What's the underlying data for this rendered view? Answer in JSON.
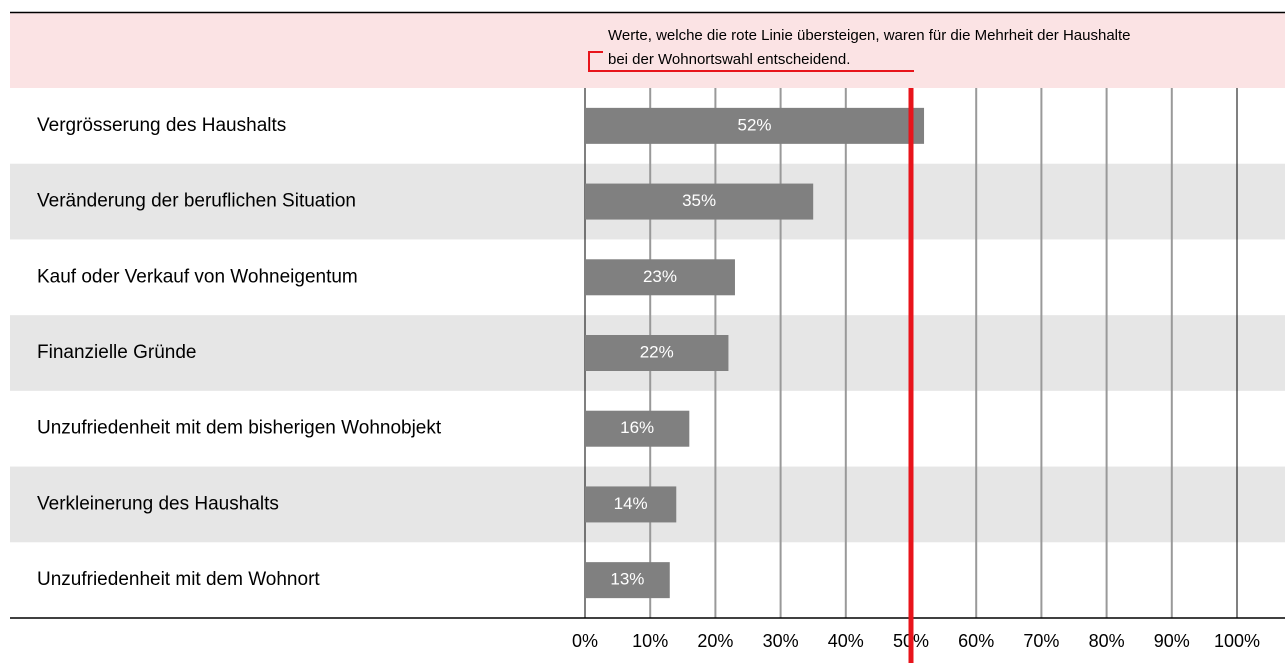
{
  "chart_data": {
    "type": "bar",
    "orientation": "horizontal",
    "annotation": [
      "Werte, welche die rote Linie übersteigen, waren für die Mehrheit der Haushalte",
      "bei der Wohnortswahl entscheidend."
    ],
    "categories": [
      "Vergrösserung des Haushalts",
      "Veränderung der beruflichen Situation",
      "Kauf oder Verkauf von Wohneigentum",
      "Finanzielle Gründe",
      "Unzufriedenheit mit dem bisherigen Wohnobjekt",
      "Verkleinerung des Haushalts",
      "Unzufriedenheit mit dem Wohnort"
    ],
    "values": [
      52,
      35,
      23,
      22,
      16,
      14,
      13
    ],
    "value_labels": [
      "52%",
      "35%",
      "23%",
      "22%",
      "16%",
      "14%",
      "13%"
    ],
    "color": "#808080",
    "threshold": 50,
    "threshold_color": "#e8141b",
    "xlim": [
      0,
      100
    ],
    "xticks": [
      {
        "value": 0,
        "label": "0%"
      },
      {
        "value": 10,
        "label": "10%"
      },
      {
        "value": 20,
        "label": "20%"
      },
      {
        "value": 30,
        "label": "30%"
      },
      {
        "value": 40,
        "label": "40%"
      },
      {
        "value": 50,
        "label": "50%"
      },
      {
        "value": 60,
        "label": "60%"
      },
      {
        "value": 70,
        "label": "70%"
      },
      {
        "value": 80,
        "label": "80%"
      },
      {
        "value": 90,
        "label": "90%"
      },
      {
        "value": 100,
        "label": "100%"
      }
    ],
    "grid": true
  }
}
